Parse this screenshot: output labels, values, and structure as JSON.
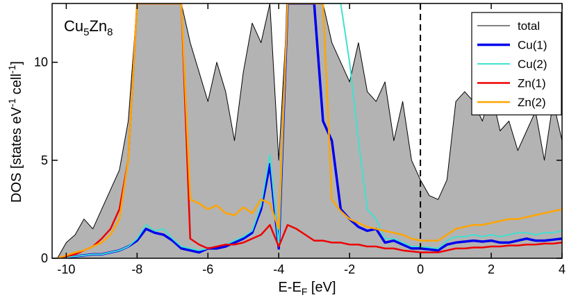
{
  "chart_data": {
    "type": "line",
    "annotation": [
      "Cu",
      "5",
      "Zn",
      "8"
    ],
    "xlabel": [
      "E-E",
      "F",
      " [eV]"
    ],
    "ylabel": [
      "DOS [states eV",
      "-1",
      " cell",
      "-1",
      "]"
    ],
    "xlim": [
      -10.4,
      4
    ],
    "ylim": [
      0,
      13
    ],
    "xticks": [
      -10,
      -8,
      -6,
      -4,
      -2,
      0,
      2,
      4
    ],
    "yticks": [
      0,
      5,
      10
    ],
    "fermi_line": 0,
    "legend": "upper right",
    "x": [
      -10.25,
      -10,
      -9.75,
      -9.5,
      -9.25,
      -9,
      -8.75,
      -8.5,
      -8.25,
      -8,
      -7.75,
      -7.5,
      -7.25,
      -7,
      -6.75,
      -6.5,
      -6.25,
      -6,
      -5.75,
      -5.5,
      -5.25,
      -5,
      -4.75,
      -4.5,
      -4.25,
      -4,
      -3.75,
      -3.5,
      -3.25,
      -3,
      -2.75,
      -2.5,
      -2.25,
      -2,
      -1.75,
      -1.5,
      -1.25,
      -1,
      -0.75,
      -0.5,
      -0.25,
      0,
      0.25,
      0.5,
      0.75,
      1,
      1.25,
      1.5,
      1.75,
      2,
      2.25,
      2.5,
      2.75,
      3,
      3.25,
      3.5,
      3.75,
      4
    ],
    "series": [
      {
        "name": "total",
        "color": "#000000",
        "fill": "#b3b3b3",
        "width": 1,
        "values": [
          0,
          0.8,
          1.2,
          2,
          1.5,
          2.5,
          3.5,
          4.5,
          7,
          13,
          13,
          13,
          13,
          13,
          13,
          11,
          9.5,
          8,
          10,
          8.5,
          6,
          9.5,
          12,
          11,
          13,
          5,
          13,
          13,
          13,
          13,
          13,
          11,
          10,
          9,
          11,
          8.5,
          8,
          9,
          6,
          8,
          5,
          4,
          3.2,
          3,
          4,
          8,
          8.5,
          8,
          7,
          8.5,
          6.5,
          7,
          5.5,
          6.5,
          7.5,
          5,
          8,
          6
        ]
      },
      {
        "name": "Cu(1)",
        "color": "#0000ee",
        "width": 3.5,
        "values": [
          0,
          0.05,
          0.1,
          0.15,
          0.2,
          0.2,
          0.3,
          0.4,
          0.6,
          0.9,
          1.5,
          1.3,
          1.2,
          0.9,
          0.5,
          0.4,
          0.3,
          0.5,
          0.5,
          0.6,
          0.8,
          1,
          1.3,
          2.5,
          4.8,
          0.5,
          13,
          13,
          13,
          13,
          7,
          6,
          2.5,
          2,
          1.6,
          1.4,
          1.5,
          0.8,
          0.9,
          0.7,
          0.5,
          0.5,
          0.45,
          0.4,
          0.7,
          0.8,
          0.85,
          0.9,
          0.85,
          0.9,
          0.8,
          0.8,
          0.9,
          1,
          0.9,
          0.9,
          0.95,
          1
        ]
      },
      {
        "name": "Cu(2)",
        "color": "#40e0d0",
        "width": 2,
        "values": [
          0,
          0.05,
          0.1,
          0.15,
          0.2,
          0.2,
          0.3,
          0.4,
          0.6,
          1,
          1.7,
          1.4,
          1.5,
          1,
          0.6,
          0.5,
          0.4,
          0.5,
          0.6,
          0.7,
          0.9,
          1.1,
          1.4,
          2.7,
          5.3,
          0.6,
          13,
          13,
          13,
          13,
          13,
          13,
          13,
          10,
          6,
          2.5,
          2,
          1,
          1,
          0.8,
          0.6,
          0.6,
          0.55,
          0.5,
          0.9,
          1.1,
          1.1,
          1.2,
          1.1,
          1.2,
          1.1,
          1.2,
          1.3,
          1.3,
          1.2,
          1.3,
          1.3,
          1.4
        ]
      },
      {
        "name": "Zn(1)",
        "color": "#ee0000",
        "width": 2.5,
        "values": [
          0,
          0.1,
          0.2,
          0.4,
          0.6,
          1,
          1.5,
          2.5,
          5,
          13,
          13,
          13,
          13,
          13,
          13,
          1,
          0.7,
          0.5,
          0.6,
          0.7,
          0.7,
          0.8,
          1,
          1.2,
          1.7,
          0.6,
          1.7,
          1.5,
          1.2,
          0.9,
          0.9,
          0.8,
          0.8,
          0.7,
          0.7,
          0.6,
          0.6,
          0.5,
          0.5,
          0.4,
          0.35,
          0.3,
          0.3,
          0.3,
          0.4,
          0.5,
          0.5,
          0.55,
          0.55,
          0.6,
          0.6,
          0.65,
          0.65,
          0.7,
          0.7,
          0.75,
          0.75,
          0.8
        ]
      },
      {
        "name": "Zn(2)",
        "color": "#ffa500",
        "width": 2.5,
        "values": [
          0,
          0.15,
          0.3,
          0.4,
          0.6,
          0.8,
          1.2,
          2,
          5,
          13,
          13,
          13,
          13,
          13,
          13,
          3,
          2.8,
          2.5,
          2.7,
          2.3,
          2.2,
          2.6,
          2.3,
          3,
          2.8,
          1.5,
          13,
          13,
          13,
          13,
          13,
          3,
          2.4,
          2,
          1.8,
          1.6,
          1.5,
          1.4,
          1.3,
          1.2,
          1,
          0.9,
          0.9,
          0.9,
          1.2,
          1.5,
          1.6,
          1.7,
          1.7,
          1.8,
          1.9,
          2,
          2,
          2.1,
          2.2,
          2.3,
          2.4,
          2.5
        ]
      }
    ]
  }
}
